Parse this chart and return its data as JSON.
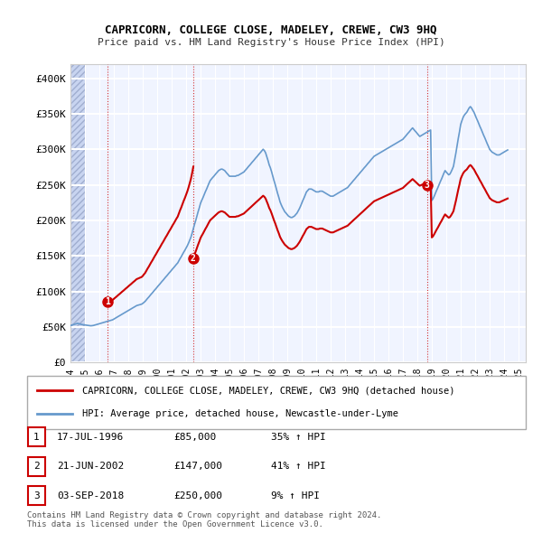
{
  "title": "CAPRICORN, COLLEGE CLOSE, MADELEY, CREWE, CW3 9HQ",
  "subtitle": "Price paid vs. HM Land Registry's House Price Index (HPI)",
  "legend_line1": "CAPRICORN, COLLEGE CLOSE, MADELEY, CREWE, CW3 9HQ (detached house)",
  "legend_line2": "HPI: Average price, detached house, Newcastle-under-Lyme",
  "footer1": "Contains HM Land Registry data © Crown copyright and database right 2024.",
  "footer2": "This data is licensed under the Open Government Licence v3.0.",
  "transactions": [
    {
      "num": 1,
      "date": "17-JUL-1996",
      "price": "£85,000",
      "change": "35% ↑ HPI"
    },
    {
      "num": 2,
      "date": "21-JUN-2002",
      "price": "£147,000",
      "change": "41% ↑ HPI"
    },
    {
      "num": 3,
      "date": "03-SEP-2018",
      "price": "£250,000",
      "change": "9% ↑ HPI"
    }
  ],
  "ylim": [
    0,
    420000
  ],
  "yticks": [
    0,
    50000,
    100000,
    150000,
    200000,
    250000,
    300000,
    350000,
    400000
  ],
  "ytick_labels": [
    "£0",
    "£50K",
    "£100K",
    "£150K",
    "£200K",
    "£250K",
    "£300K",
    "£350K",
    "£400K"
  ],
  "xlim_start": 1994.0,
  "xlim_end": 2025.5,
  "hpi_color": "#6699cc",
  "price_color": "#cc0000",
  "marker_color": "#cc0000",
  "background_color": "#f0f4ff",
  "hatch_color": "#c8d4f0",
  "grid_color": "#ffffff",
  "hpi_data": {
    "years": [
      1994.0,
      1994.08,
      1994.17,
      1994.25,
      1994.33,
      1994.42,
      1994.5,
      1994.58,
      1994.67,
      1994.75,
      1994.83,
      1994.92,
      1995.0,
      1995.08,
      1995.17,
      1995.25,
      1995.33,
      1995.42,
      1995.5,
      1995.58,
      1995.67,
      1995.75,
      1995.83,
      1995.92,
      1996.0,
      1996.08,
      1996.17,
      1996.25,
      1996.33,
      1996.42,
      1996.5,
      1996.58,
      1996.67,
      1996.75,
      1996.83,
      1996.92,
      1997.0,
      1997.08,
      1997.17,
      1997.25,
      1997.33,
      1997.42,
      1997.5,
      1997.58,
      1997.67,
      1997.75,
      1997.83,
      1997.92,
      1998.0,
      1998.08,
      1998.17,
      1998.25,
      1998.33,
      1998.42,
      1998.5,
      1998.58,
      1998.67,
      1998.75,
      1998.83,
      1998.92,
      1999.0,
      1999.08,
      1999.17,
      1999.25,
      1999.33,
      1999.42,
      1999.5,
      1999.58,
      1999.67,
      1999.75,
      1999.83,
      1999.92,
      2000.0,
      2000.08,
      2000.17,
      2000.25,
      2000.33,
      2000.42,
      2000.5,
      2000.58,
      2000.67,
      2000.75,
      2000.83,
      2000.92,
      2001.0,
      2001.08,
      2001.17,
      2001.25,
      2001.33,
      2001.42,
      2001.5,
      2001.58,
      2001.67,
      2001.75,
      2001.83,
      2001.92,
      2002.0,
      2002.08,
      2002.17,
      2002.25,
      2002.33,
      2002.42,
      2002.5,
      2002.58,
      2002.67,
      2002.75,
      2002.83,
      2002.92,
      2003.0,
      2003.08,
      2003.17,
      2003.25,
      2003.33,
      2003.42,
      2003.5,
      2003.58,
      2003.67,
      2003.75,
      2003.83,
      2003.92,
      2004.0,
      2004.08,
      2004.17,
      2004.25,
      2004.33,
      2004.42,
      2004.5,
      2004.58,
      2004.67,
      2004.75,
      2004.83,
      2004.92,
      2005.0,
      2005.08,
      2005.17,
      2005.25,
      2005.33,
      2005.42,
      2005.5,
      2005.58,
      2005.67,
      2005.75,
      2005.83,
      2005.92,
      2006.0,
      2006.08,
      2006.17,
      2006.25,
      2006.33,
      2006.42,
      2006.5,
      2006.58,
      2006.67,
      2006.75,
      2006.83,
      2006.92,
      2007.0,
      2007.08,
      2007.17,
      2007.25,
      2007.33,
      2007.42,
      2007.5,
      2007.58,
      2007.67,
      2007.75,
      2007.83,
      2007.92,
      2008.0,
      2008.08,
      2008.17,
      2008.25,
      2008.33,
      2008.42,
      2008.5,
      2008.58,
      2008.67,
      2008.75,
      2008.83,
      2008.92,
      2009.0,
      2009.08,
      2009.17,
      2009.25,
      2009.33,
      2009.42,
      2009.5,
      2009.58,
      2009.67,
      2009.75,
      2009.83,
      2009.92,
      2010.0,
      2010.08,
      2010.17,
      2010.25,
      2010.33,
      2010.42,
      2010.5,
      2010.58,
      2010.67,
      2010.75,
      2010.83,
      2010.92,
      2011.0,
      2011.08,
      2011.17,
      2011.25,
      2011.33,
      2011.42,
      2011.5,
      2011.58,
      2011.67,
      2011.75,
      2011.83,
      2011.92,
      2012.0,
      2012.08,
      2012.17,
      2012.25,
      2012.33,
      2012.42,
      2012.5,
      2012.58,
      2012.67,
      2012.75,
      2012.83,
      2012.92,
      2013.0,
      2013.08,
      2013.17,
      2013.25,
      2013.33,
      2013.42,
      2013.5,
      2013.58,
      2013.67,
      2013.75,
      2013.83,
      2013.92,
      2014.0,
      2014.08,
      2014.17,
      2014.25,
      2014.33,
      2014.42,
      2014.5,
      2014.58,
      2014.67,
      2014.75,
      2014.83,
      2014.92,
      2015.0,
      2015.08,
      2015.17,
      2015.25,
      2015.33,
      2015.42,
      2015.5,
      2015.58,
      2015.67,
      2015.75,
      2015.83,
      2015.92,
      2016.0,
      2016.08,
      2016.17,
      2016.25,
      2016.33,
      2016.42,
      2016.5,
      2016.58,
      2016.67,
      2016.75,
      2016.83,
      2016.92,
      2017.0,
      2017.08,
      2017.17,
      2017.25,
      2017.33,
      2017.42,
      2017.5,
      2017.58,
      2017.67,
      2017.75,
      2017.83,
      2017.92,
      2018.0,
      2018.08,
      2018.17,
      2018.25,
      2018.33,
      2018.42,
      2018.5,
      2018.58,
      2018.67,
      2018.75,
      2018.83,
      2018.92,
      2019.0,
      2019.08,
      2019.17,
      2019.25,
      2019.33,
      2019.42,
      2019.5,
      2019.58,
      2019.67,
      2019.75,
      2019.83,
      2019.92,
      2020.0,
      2020.08,
      2020.17,
      2020.25,
      2020.33,
      2020.42,
      2020.5,
      2020.58,
      2020.67,
      2020.75,
      2020.83,
      2020.92,
      2021.0,
      2021.08,
      2021.17,
      2021.25,
      2021.33,
      2021.42,
      2021.5,
      2021.58,
      2021.67,
      2021.75,
      2021.83,
      2021.92,
      2022.0,
      2022.08,
      2022.17,
      2022.25,
      2022.33,
      2022.42,
      2022.5,
      2022.58,
      2022.67,
      2022.75,
      2022.83,
      2022.92,
      2023.0,
      2023.08,
      2023.17,
      2023.25,
      2023.33,
      2023.42,
      2023.5,
      2023.58,
      2023.67,
      2023.75,
      2023.83,
      2023.92,
      2024.0,
      2024.08,
      2024.17,
      2024.25
    ],
    "values": [
      52000,
      52500,
      53000,
      53500,
      54000,
      54500,
      55000,
      54500,
      54000,
      53500,
      53200,
      53000,
      52800,
      52500,
      52200,
      52000,
      51800,
      51600,
      51800,
      52000,
      52500,
      53000,
      53500,
      54000,
      54500,
      55000,
      55500,
      56000,
      56500,
      57000,
      57500,
      58000,
      58500,
      59000,
      59500,
      60000,
      61000,
      62000,
      63000,
      64000,
      65000,
      66000,
      67000,
      68000,
      69000,
      70000,
      71000,
      72000,
      73000,
      74000,
      75000,
      76000,
      77000,
      78000,
      79000,
      80000,
      80500,
      81000,
      81500,
      82000,
      83000,
      84500,
      86000,
      88000,
      90000,
      92000,
      94000,
      96000,
      98000,
      100000,
      102000,
      104000,
      106000,
      108000,
      110000,
      112000,
      114000,
      116000,
      118000,
      120000,
      122000,
      124000,
      126000,
      128000,
      130000,
      132000,
      134000,
      136000,
      138000,
      140000,
      143000,
      146000,
      149000,
      152000,
      155000,
      158000,
      161000,
      164000,
      168000,
      172000,
      176000,
      182000,
      188000,
      194000,
      200000,
      206000,
      212000,
      218000,
      224000,
      228000,
      232000,
      236000,
      240000,
      244000,
      248000,
      252000,
      256000,
      258000,
      260000,
      262000,
      264000,
      266000,
      268000,
      270000,
      271000,
      272000,
      272000,
      271000,
      270000,
      268000,
      266000,
      264000,
      262000,
      262000,
      262000,
      262000,
      262000,
      262000,
      263000,
      263000,
      264000,
      265000,
      266000,
      267000,
      268000,
      270000,
      272000,
      274000,
      276000,
      278000,
      280000,
      282000,
      284000,
      286000,
      288000,
      290000,
      292000,
      294000,
      296000,
      298000,
      300000,
      298000,
      295000,
      290000,
      284000,
      278000,
      274000,
      268000,
      262000,
      256000,
      250000,
      244000,
      238000,
      232000,
      226000,
      222000,
      218000,
      215000,
      212000,
      210000,
      208000,
      206000,
      205000,
      204000,
      204000,
      205000,
      206000,
      208000,
      210000,
      213000,
      216000,
      220000,
      224000,
      228000,
      232000,
      236000,
      240000,
      242000,
      244000,
      244000,
      244000,
      243000,
      242000,
      241000,
      240000,
      240000,
      240000,
      241000,
      241000,
      241000,
      240000,
      239000,
      238000,
      237000,
      236000,
      235000,
      234000,
      234000,
      234000,
      235000,
      236000,
      237000,
      238000,
      239000,
      240000,
      241000,
      242000,
      243000,
      244000,
      245000,
      246000,
      248000,
      250000,
      252000,
      254000,
      256000,
      258000,
      260000,
      262000,
      264000,
      266000,
      268000,
      270000,
      272000,
      274000,
      276000,
      278000,
      280000,
      282000,
      284000,
      286000,
      288000,
      290000,
      291000,
      292000,
      293000,
      294000,
      295000,
      296000,
      297000,
      298000,
      299000,
      300000,
      301000,
      302000,
      303000,
      304000,
      305000,
      306000,
      307000,
      308000,
      309000,
      310000,
      311000,
      312000,
      313000,
      314000,
      316000,
      318000,
      320000,
      322000,
      324000,
      326000,
      328000,
      330000,
      328000,
      326000,
      324000,
      322000,
      320000,
      318000,
      319000,
      320000,
      321000,
      322000,
      323000,
      324000,
      325000,
      326000,
      327000,
      228000,
      230000,
      234000,
      238000,
      242000,
      246000,
      250000,
      254000,
      258000,
      262000,
      266000,
      270000,
      268000,
      266000,
      264000,
      265000,
      268000,
      272000,
      276000,
      285000,
      295000,
      305000,
      315000,
      325000,
      335000,
      340000,
      345000,
      348000,
      350000,
      352000,
      355000,
      358000,
      360000,
      358000,
      355000,
      352000,
      348000,
      344000,
      340000,
      336000,
      332000,
      328000,
      324000,
      320000,
      316000,
      312000,
      308000,
      304000,
      300000,
      298000,
      296000,
      295000,
      294000,
      293000,
      292000,
      292000,
      292000,
      293000,
      294000,
      295000,
      296000,
      297000,
      298000,
      299000
    ]
  },
  "price_series": {
    "years": [
      1996.54,
      2002.47,
      2018.67
    ],
    "values": [
      85000,
      147000,
      250000
    ]
  },
  "hpi_series_extended": {
    "years_extra": [
      2018.67,
      2019.0,
      2019.5,
      2020.0,
      2020.5,
      2021.0,
      2021.5,
      2022.0,
      2022.5,
      2023.0,
      2023.5,
      2024.0,
      2024.25
    ],
    "values_extra": [
      250000,
      252000,
      258000,
      268000,
      290000,
      335000,
      355000,
      348000,
      332000,
      300000,
      295000,
      296000,
      299000
    ]
  },
  "sale_markers": [
    {
      "year": 1996.54,
      "value": 85000,
      "label": "1"
    },
    {
      "year": 2002.47,
      "value": 147000,
      "label": "2"
    },
    {
      "year": 2018.67,
      "value": 250000,
      "label": "3"
    }
  ],
  "hpi_indexed_start": 1996.54,
  "hpi_indexed_val": 85000
}
